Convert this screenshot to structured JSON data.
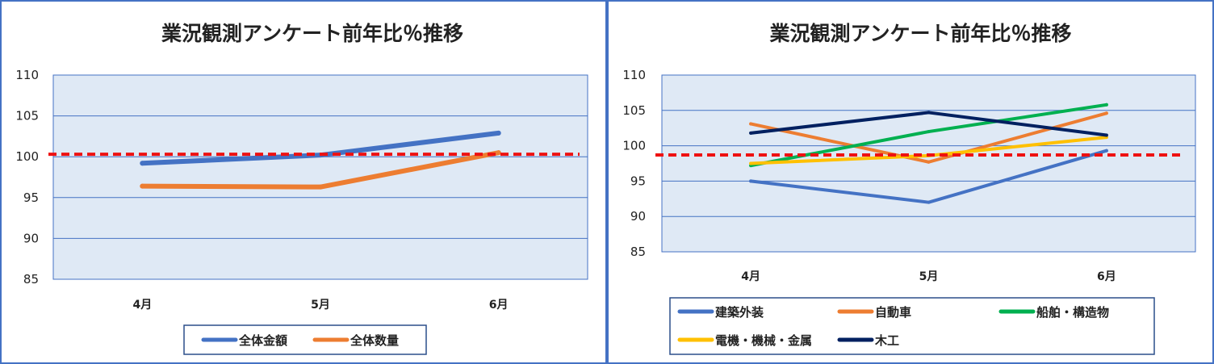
{
  "chart_data": [
    {
      "type": "line",
      "title": "業況観測アンケート前年比％推移",
      "categories": [
        "4月",
        "5月",
        "6月"
      ],
      "ylim": [
        85,
        110
      ],
      "yticks": [
        85,
        90,
        95,
        100,
        105,
        110
      ],
      "grid": true,
      "legend_position": "bottom",
      "reference_line": {
        "value": 100.3,
        "color": "#ee1111",
        "style": "dashed"
      },
      "series": [
        {
          "name": "全体金額",
          "color": "#4472c4",
          "values": [
            99.2,
            100.2,
            102.9
          ]
        },
        {
          "name": "全体数量",
          "color": "#ed7d31",
          "values": [
            96.4,
            96.3,
            100.5
          ]
        }
      ]
    },
    {
      "type": "line",
      "title": "業況観測アンケート前年比％推移",
      "categories": [
        "4月",
        "5月",
        "6月"
      ],
      "ylim": [
        85,
        110
      ],
      "yticks": [
        85,
        90,
        95,
        100,
        105,
        110
      ],
      "grid": true,
      "legend_position": "bottom",
      "reference_line": {
        "value": 98.7,
        "color": "#ee1111",
        "style": "dashed"
      },
      "series": [
        {
          "name": "建築外装",
          "color": "#4472c4",
          "values": [
            95.0,
            92.0,
            99.3
          ]
        },
        {
          "name": "自動車",
          "color": "#ed7d31",
          "values": [
            103.1,
            97.7,
            104.6
          ]
        },
        {
          "name": "船舶・構造物",
          "color": "#00b050",
          "values": [
            97.2,
            102.0,
            105.8
          ]
        },
        {
          "name": "電機・機械・金属",
          "color": "#ffc000",
          "values": [
            97.5,
            98.6,
            101.2
          ]
        },
        {
          "name": "木工",
          "color": "#002060",
          "values": [
            101.8,
            104.7,
            101.5
          ]
        }
      ]
    }
  ]
}
